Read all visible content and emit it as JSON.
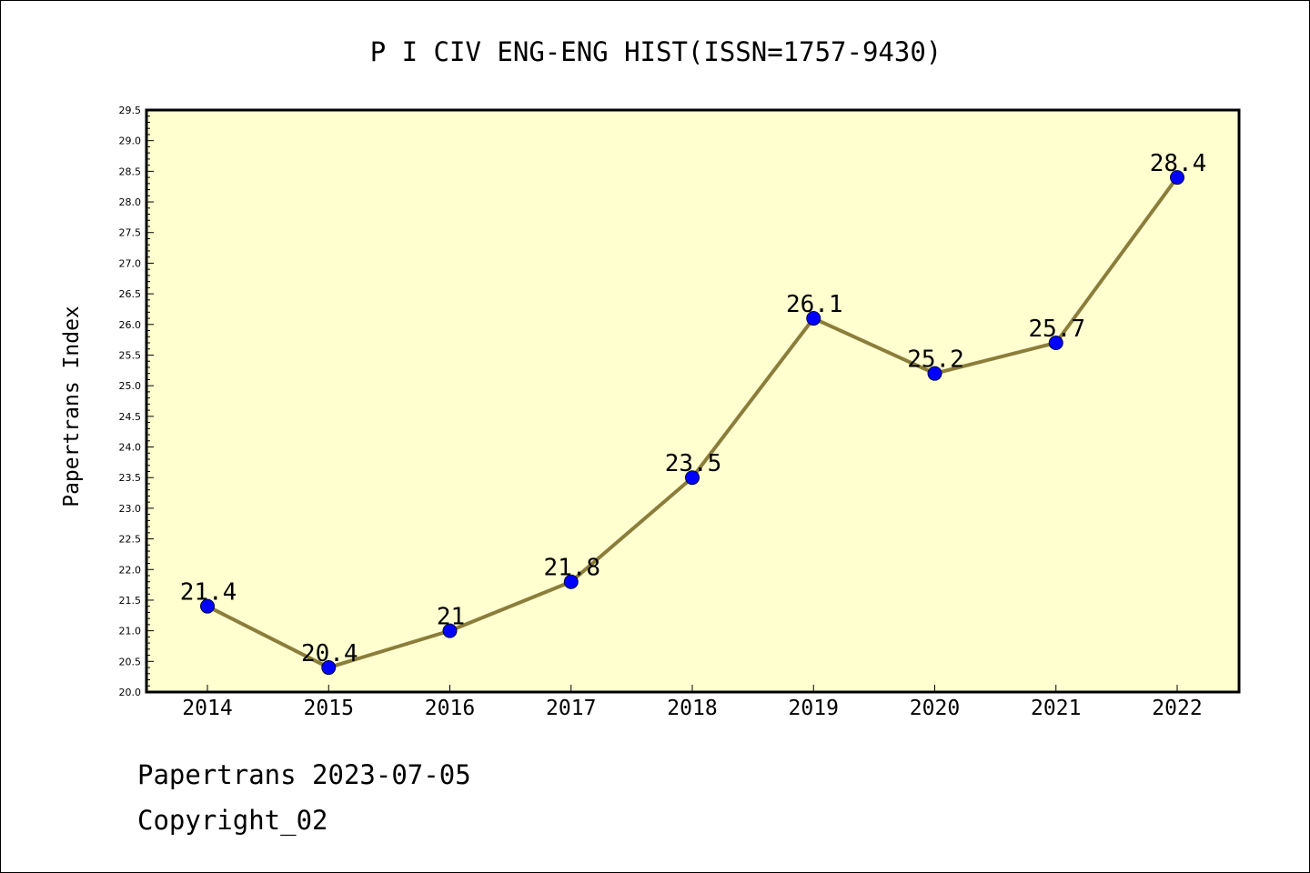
{
  "chart_data": {
    "type": "line",
    "title": "P I CIV ENG-ENG HIST(ISSN=1757-9430)",
    "xlabel": "",
    "ylabel": "Papertrans Index",
    "categories": [
      "2014",
      "2015",
      "2016",
      "2017",
      "2018",
      "2019",
      "2020",
      "2021",
      "2022"
    ],
    "series": [
      {
        "values": [
          21.4,
          20.4,
          21.0,
          21.8,
          23.5,
          26.1,
          25.2,
          25.7,
          28.4
        ],
        "labels": [
          "21.4",
          "20.4",
          "21",
          "21.8",
          "23.5",
          "26.1",
          "25.2",
          "25.7",
          "28.4"
        ]
      }
    ],
    "ylim": [
      20.0,
      29.5
    ],
    "yticks": [
      "20.0",
      "20.5",
      "21.0",
      "21.5",
      "22.0",
      "22.5",
      "23.0",
      "23.5",
      "24.0",
      "24.5",
      "25.0",
      "25.5",
      "26.0",
      "26.5",
      "27.0",
      "27.5",
      "28.0",
      "28.5",
      "29.0",
      "29.5"
    ],
    "grid": false,
    "legend": "none",
    "colors": {
      "line": "#8b7d3a",
      "marker": "#0000ff",
      "plot_background": "#ffffd0",
      "frame": "#000000"
    }
  },
  "footer": {
    "date_text": "Papertrans 2023-07-05",
    "copyright_text": "Copyright_02"
  }
}
